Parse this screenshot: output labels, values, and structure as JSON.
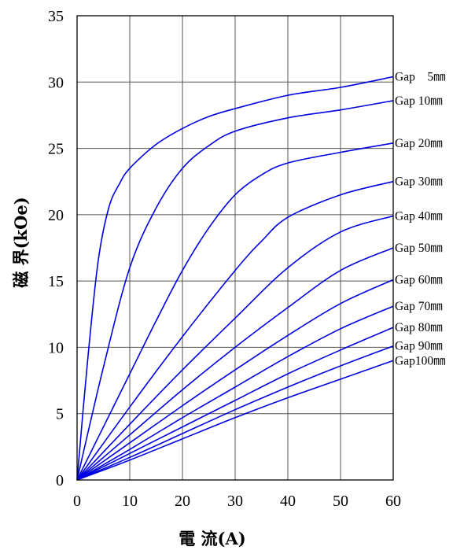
{
  "chart_data": {
    "type": "line",
    "title": "",
    "xlabel": "電 流(A)",
    "ylabel": "磁 界(kOe)",
    "xlim": [
      0,
      60
    ],
    "ylim": [
      0,
      35
    ],
    "xticks": [
      0,
      10,
      20,
      30,
      40,
      50,
      60
    ],
    "yticks": [
      0,
      5,
      10,
      15,
      20,
      25,
      30,
      35
    ],
    "xtick_labels": [
      "0",
      "10",
      "20",
      "30",
      "40",
      "50",
      "60"
    ],
    "ytick_labels": [
      "0",
      "5",
      "10",
      "15",
      "20",
      "25",
      "30",
      "35"
    ],
    "grid": true,
    "line_color": "#0000e0",
    "series": [
      {
        "name": "Gap　5㎜",
        "x": [
          0,
          2,
          4,
          6,
          8,
          10,
          15,
          20,
          25,
          30,
          40,
          50,
          60
        ],
        "y": [
          0,
          9,
          16.5,
          20.5,
          22.3,
          23.5,
          25.3,
          26.5,
          27.4,
          28.0,
          29.0,
          29.6,
          30.4
        ]
      },
      {
        "name": "Gap 10㎜",
        "x": [
          0,
          5,
          10,
          15,
          20,
          25,
          30,
          40,
          50,
          60
        ],
        "y": [
          0,
          8.5,
          16.0,
          20.5,
          23.5,
          25.2,
          26.3,
          27.3,
          27.9,
          28.6
        ]
      },
      {
        "name": "Gap 20㎜",
        "x": [
          0,
          5,
          10,
          15,
          20,
          25,
          30,
          35,
          40,
          50,
          60
        ],
        "y": [
          0,
          4.0,
          8.0,
          12.0,
          15.8,
          19.0,
          21.5,
          23.0,
          23.9,
          24.7,
          25.4
        ]
      },
      {
        "name": "Gap 30㎜",
        "x": [
          0,
          10,
          20,
          30,
          35,
          40,
          50,
          60
        ],
        "y": [
          0,
          5.5,
          10.8,
          15.8,
          18.0,
          19.8,
          21.5,
          22.5
        ]
      },
      {
        "name": "Gap 40㎜",
        "x": [
          0,
          10,
          20,
          30,
          40,
          50,
          60
        ],
        "y": [
          0,
          4.2,
          8.3,
          12.2,
          16.0,
          18.7,
          19.9
        ]
      },
      {
        "name": "Gap 50㎜",
        "x": [
          0,
          10,
          20,
          30,
          40,
          50,
          60
        ],
        "y": [
          0,
          3.4,
          6.8,
          10.0,
          13.0,
          15.8,
          17.5
        ]
      },
      {
        "name": "Gap 60㎜",
        "x": [
          0,
          10,
          20,
          30,
          40,
          50,
          60
        ],
        "y": [
          0,
          2.8,
          5.6,
          8.3,
          10.9,
          13.3,
          15.1
        ]
      },
      {
        "name": "Gap 70㎜",
        "x": [
          0,
          10,
          20,
          30,
          40,
          50,
          60
        ],
        "y": [
          0,
          2.3,
          4.7,
          7.0,
          9.3,
          11.4,
          13.1
        ]
      },
      {
        "name": "Gap 80㎜",
        "x": [
          0,
          10,
          20,
          30,
          40,
          50,
          60
        ],
        "y": [
          0,
          2.0,
          4.0,
          6.0,
          8.0,
          9.8,
          11.5
        ]
      },
      {
        "name": "Gap 90㎜",
        "x": [
          0,
          10,
          20,
          30,
          40,
          50,
          60
        ],
        "y": [
          0,
          1.7,
          3.5,
          5.3,
          7.0,
          8.6,
          10.1
        ]
      },
      {
        "name": "Gap100㎜",
        "x": [
          0,
          10,
          20,
          30,
          40,
          50,
          60
        ],
        "y": [
          0,
          1.5,
          3.1,
          4.7,
          6.2,
          7.6,
          9.0
        ]
      }
    ]
  }
}
